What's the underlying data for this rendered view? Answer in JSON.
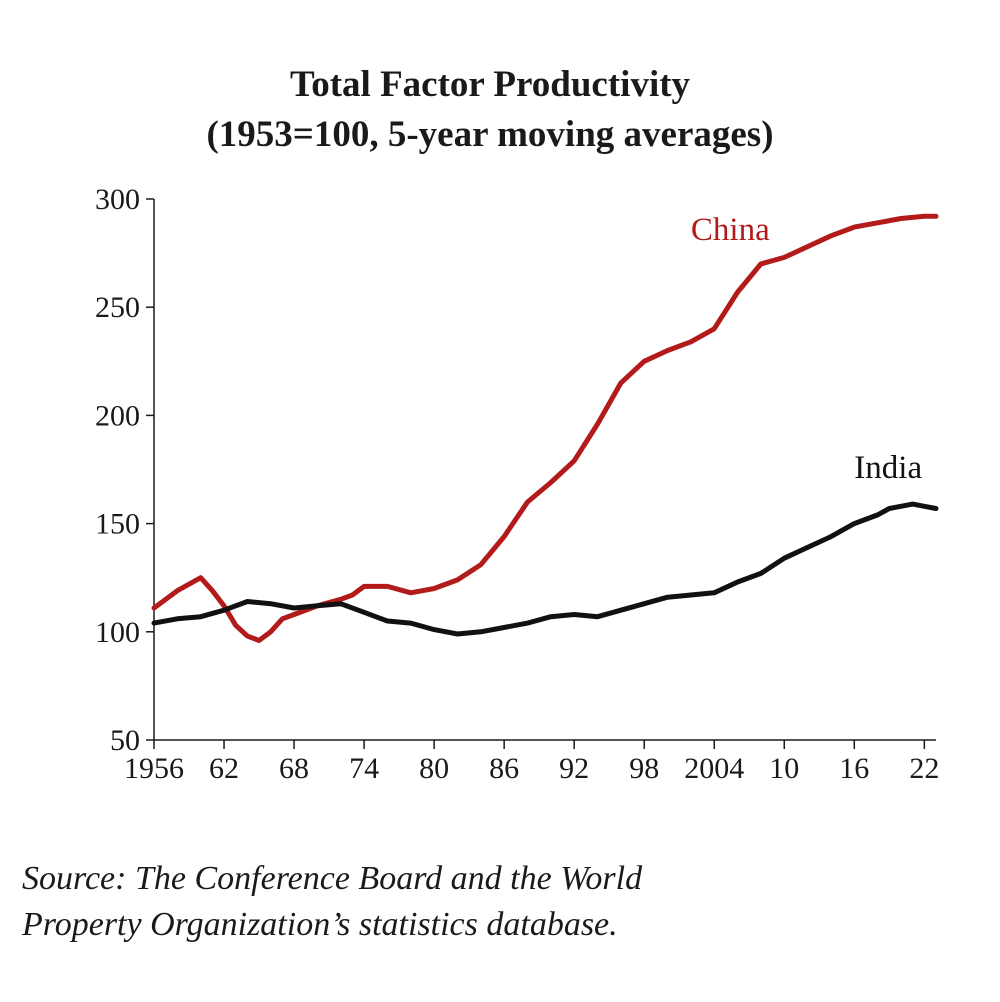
{
  "chart_data": {
    "type": "line",
    "title": "Total Factor Productivity",
    "subtitle": "(1953=100, 5-year moving averages)",
    "xlabel": "",
    "ylabel": "",
    "xlim": [
      1956,
      2023
    ],
    "ylim": [
      50,
      300
    ],
    "x_tick_values": [
      1956,
      1962,
      1968,
      1974,
      1980,
      1986,
      1992,
      1998,
      2004,
      2010,
      2016,
      2022
    ],
    "x_tick_labels": [
      "1956",
      "62",
      "68",
      "74",
      "80",
      "86",
      "92",
      "98",
      "2004",
      "10",
      "16",
      "22"
    ],
    "y_ticks": [
      50,
      100,
      150,
      200,
      250,
      300
    ],
    "y_tick_labels": [
      "50",
      "100",
      "150",
      "200",
      "250",
      "300"
    ],
    "grid": false,
    "legend": "direct labels on lines",
    "series": [
      {
        "name": "China",
        "color": "#b31b1b",
        "x": [
          1956,
          1958,
          1960,
          1961,
          1962,
          1963,
          1964,
          1965,
          1966,
          1967,
          1968,
          1970,
          1972,
          1973,
          1974,
          1976,
          1978,
          1980,
          1982,
          1984,
          1986,
          1988,
          1990,
          1992,
          1994,
          1996,
          1998,
          2000,
          2002,
          2004,
          2006,
          2008,
          2010,
          2012,
          2014,
          2016,
          2018,
          2020,
          2022,
          2023
        ],
        "values": [
          111,
          119,
          125,
          119,
          112,
          103,
          98,
          96,
          100,
          106,
          108,
          112,
          115,
          117,
          121,
          121,
          118,
          120,
          124,
          131,
          144,
          160,
          169,
          179,
          196,
          215,
          225,
          230,
          234,
          240,
          257,
          270,
          273,
          278,
          283,
          287,
          289,
          291,
          292,
          292
        ]
      },
      {
        "name": "India",
        "color": "#111111",
        "x": [
          1956,
          1958,
          1960,
          1962,
          1964,
          1966,
          1968,
          1970,
          1972,
          1974,
          1976,
          1978,
          1980,
          1982,
          1984,
          1986,
          1988,
          1990,
          1992,
          1994,
          1996,
          1998,
          2000,
          2002,
          2004,
          2006,
          2008,
          2010,
          2012,
          2014,
          2016,
          2018,
          2019,
          2020,
          2021,
          2022,
          2023
        ],
        "values": [
          104,
          106,
          107,
          110,
          114,
          113,
          111,
          112,
          113,
          109,
          105,
          104,
          101,
          99,
          100,
          102,
          104,
          107,
          108,
          107,
          110,
          113,
          116,
          117,
          118,
          123,
          127,
          134,
          139,
          144,
          150,
          154,
          157,
          158,
          159,
          158,
          157
        ]
      }
    ],
    "annotations": [
      {
        "text": "China",
        "color": "#b31b1b",
        "anchor_x": 2002,
        "anchor_y": 281
      },
      {
        "text": "India",
        "color": "#111111",
        "anchor_x": 2016,
        "anchor_y": 171
      }
    ]
  },
  "source": {
    "line1": "Source: The Conference Board and the World",
    "line2": "Property Organization’s statistics database."
  }
}
